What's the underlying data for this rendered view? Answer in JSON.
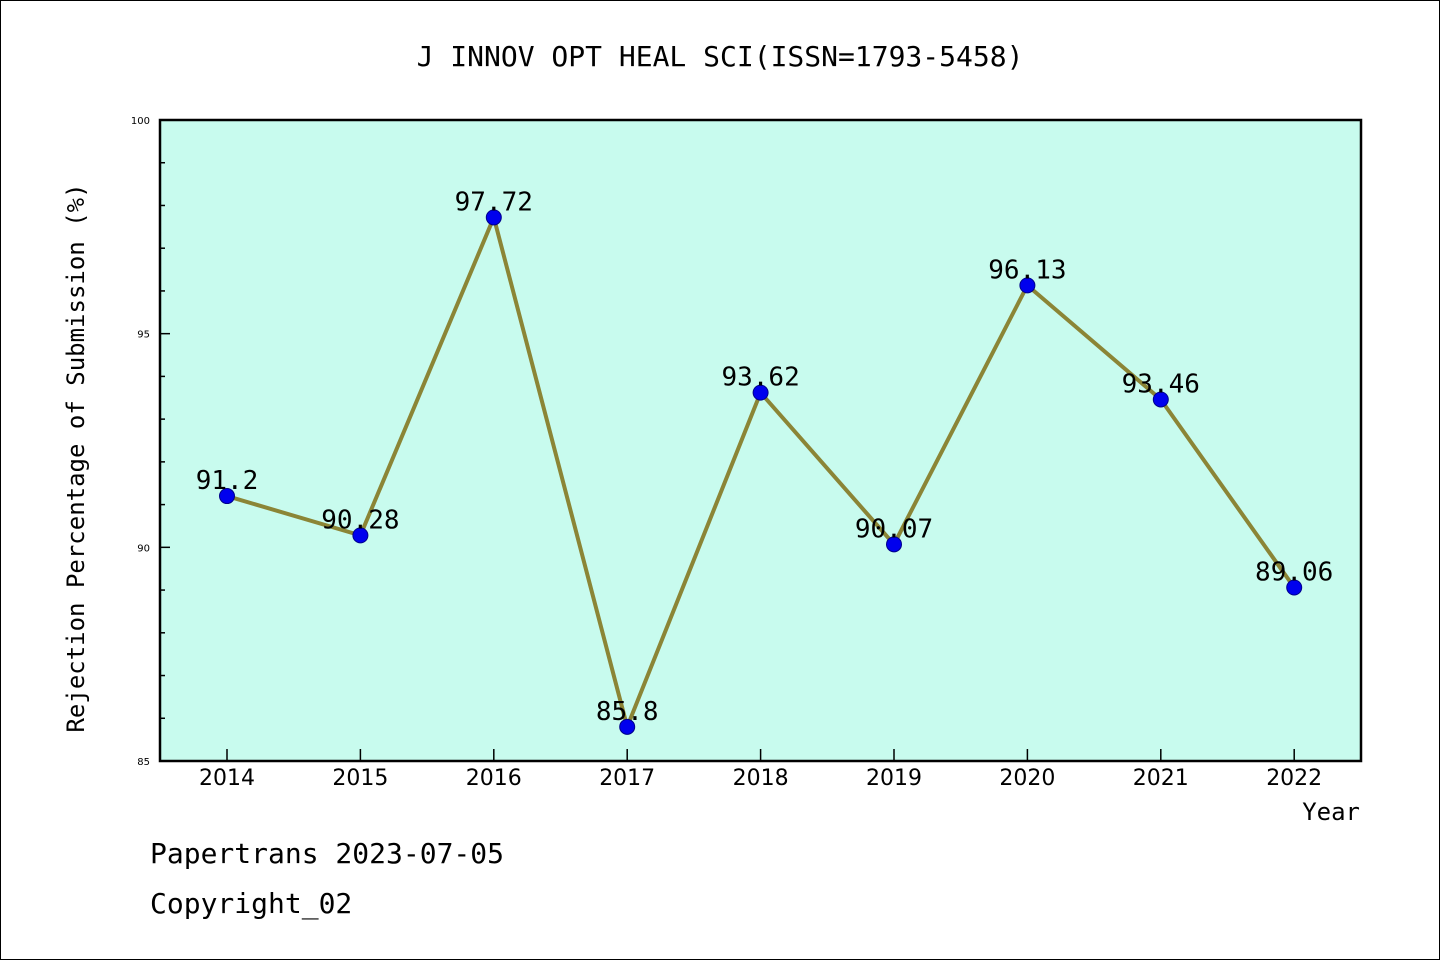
{
  "chart_data": {
    "type": "line",
    "title": "J INNOV OPT HEAL SCI(ISSN=1793-5458)",
    "xlabel": "Year",
    "ylabel": "Rejection Percentage of Submission (%)",
    "categories": [
      "2014",
      "2015",
      "2016",
      "2017",
      "2018",
      "2019",
      "2020",
      "2021",
      "2022"
    ],
    "values": [
      91.2,
      90.28,
      97.72,
      85.8,
      93.62,
      90.07,
      96.13,
      93.46,
      89.06
    ],
    "data_labels": [
      "91.2",
      "90.28",
      "97.72",
      "85.8",
      "93.62",
      "90.07",
      "96.13",
      "93.46",
      "89.06"
    ],
    "ylim": [
      85,
      100
    ],
    "yticks": [
      85,
      90,
      95,
      100
    ],
    "ytick_labels": [
      "85",
      "90",
      "95",
      "100"
    ],
    "grid": false,
    "legend": "none",
    "colors": {
      "plot_background": "#c8fbee",
      "line": "#8b8536",
      "marker": "#0000ee",
      "marker_edge": "#00008b"
    }
  },
  "footer": {
    "line1": "Papertrans 2023-07-05",
    "line2": "Copyright_02"
  }
}
